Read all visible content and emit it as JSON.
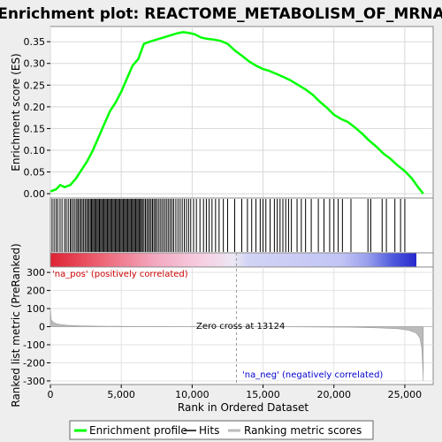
{
  "chart_data": {
    "type": "line",
    "title": "Enrichment plot: REACTOME_METABOLISM_OF_MRNA",
    "xlabel": "Rank in Ordered Dataset",
    "x_ticks": [
      0,
      5000,
      10000,
      15000,
      20000,
      25000
    ],
    "x_tick_labels": [
      "0",
      "5,000",
      "10,000",
      "15,000",
      "20,000",
      "25,000"
    ],
    "xlim": [
      0,
      27000
    ],
    "dataset_size": 26300,
    "es_panel": {
      "ylabel": "Enrichment score (ES)",
      "ylim": [
        -0.01,
        0.385
      ],
      "y_ticks": [
        0.0,
        0.05,
        0.1,
        0.15,
        0.2,
        0.25,
        0.3,
        0.35
      ],
      "y_tick_labels": [
        "0.00",
        "0.05",
        "0.10",
        "0.15",
        "0.20",
        "0.25",
        "0.30",
        "0.35"
      ],
      "line_color": "#00ff00",
      "grid": true,
      "x": [
        0,
        400,
        700,
        1000,
        1400,
        1800,
        2200,
        2600,
        3000,
        3400,
        3800,
        4200,
        4600,
        5000,
        5400,
        5800,
        6200,
        6600,
        7000,
        7500,
        8000,
        8500,
        9000,
        9400,
        9800,
        10200,
        10600,
        11000,
        11500,
        12000,
        12500,
        13000,
        13500,
        14000,
        14500,
        15000,
        15500,
        16000,
        16500,
        17000,
        17500,
        18000,
        18500,
        19000,
        19500,
        20000,
        20500,
        21000,
        21500,
        22000,
        22500,
        23000,
        23500,
        24000,
        24500,
        25000,
        25500,
        26000,
        26300
      ],
      "y": [
        0.005,
        0.01,
        0.02,
        0.015,
        0.02,
        0.035,
        0.055,
        0.075,
        0.1,
        0.13,
        0.16,
        0.19,
        0.21,
        0.235,
        0.265,
        0.295,
        0.31,
        0.345,
        0.35,
        0.355,
        0.36,
        0.365,
        0.37,
        0.372,
        0.37,
        0.367,
        0.36,
        0.357,
        0.355,
        0.352,
        0.345,
        0.33,
        0.318,
        0.305,
        0.295,
        0.287,
        0.282,
        0.275,
        0.268,
        0.26,
        0.25,
        0.24,
        0.228,
        0.212,
        0.198,
        0.182,
        0.172,
        0.165,
        0.152,
        0.138,
        0.122,
        0.108,
        0.092,
        0.08,
        0.065,
        0.052,
        0.035,
        0.012,
        0.0
      ]
    },
    "hits": [
      120,
      260,
      400,
      520,
      680,
      820,
      1000,
      1120,
      1260,
      1400,
      1500,
      1620,
      1740,
      1860,
      1950,
      2050,
      2150,
      2250,
      2350,
      2450,
      2550,
      2640,
      2730,
      2820,
      2900,
      2980,
      3060,
      3140,
      3220,
      3300,
      3380,
      3460,
      3540,
      3620,
      3700,
      3780,
      3860,
      3940,
      4020,
      4100,
      4180,
      4260,
      4340,
      4420,
      4500,
      4580,
      4660,
      4740,
      4820,
      4900,
      4980,
      5060,
      5140,
      5220,
      5300,
      5380,
      5460,
      5540,
      5620,
      5700,
      5780,
      5860,
      5940,
      6020,
      6100,
      6180,
      6260,
      6340,
      6420,
      6500,
      6600,
      6700,
      6800,
      6900,
      7000,
      7100,
      7200,
      7300,
      7400,
      7500,
      7620,
      7740,
      7860,
      7980,
      8100,
      8220,
      8340,
      8460,
      8580,
      8700,
      8850,
      9000,
      9150,
      9300,
      9450,
      9600,
      9750,
      9900,
      10100,
      10300,
      10550,
      10800,
      11000,
      11200,
      11400,
      11650,
      11900,
      12200,
      12500,
      13000,
      13500,
      13900,
      14200,
      14500,
      14800,
      15000,
      15200,
      15500,
      15800,
      16000,
      16200,
      16400,
      16600,
      16800,
      17000,
      17400,
      17700,
      18000,
      18400,
      18900,
      19300,
      19700,
      20000,
      20300,
      20600,
      21200,
      22400,
      22600,
      23400,
      23700,
      24300,
      24700,
      25000
    ],
    "metric_panel": {
      "ylabel": "Ranked list metric (PreRanked)",
      "ylim": [
        -320,
        330
      ],
      "y_ticks": [
        300,
        200,
        100,
        0,
        -100,
        -200,
        -300
      ],
      "y_tick_labels": [
        "300",
        "200",
        "100",
        "0",
        "-100",
        "-200",
        "-300"
      ],
      "zero_cross_label": "Zero cross at 13124",
      "zero_cross_rank": 13124,
      "pos_label": "'na_pos' (positively correlated)",
      "neg_label": "'na_neg' (negatively correlated)",
      "pos_color": "#cc0000",
      "neg_color": "#0000cc",
      "fill_color": "#bbbbbb",
      "profile_x": [
        0,
        50,
        150,
        300,
        500,
        800,
        1200,
        2000,
        3000,
        5000,
        8000,
        11000,
        13124,
        15000,
        18000,
        21000,
        23000,
        24500,
        25300,
        25800,
        26050,
        26200,
        26280,
        26300
      ],
      "profile_y": [
        100,
        40,
        28,
        20,
        15,
        11,
        8,
        5,
        3,
        1.5,
        0.8,
        0.3,
        0,
        -0.5,
        -1.5,
        -3,
        -6,
        -11,
        -20,
        -35,
        -60,
        -120,
        -250,
        -300
      ]
    },
    "legend": {
      "placement": "bottom",
      "items": [
        {
          "label": "Enrichment profile",
          "color": "#00ff00"
        },
        {
          "label": "Hits",
          "color": "#000000"
        },
        {
          "label": "Ranking metric scores",
          "color": "#bbbbbb"
        }
      ]
    }
  }
}
